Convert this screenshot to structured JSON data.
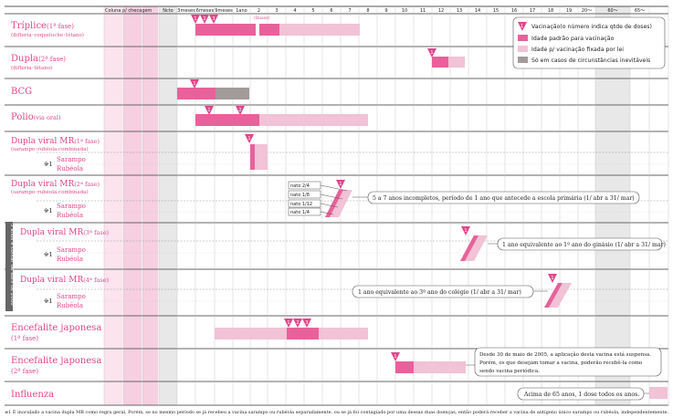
{
  "chart_data": {
    "type": "table",
    "title": "Calendário de vacinação",
    "columns": {
      "coluna": "Coluna p/ checagem",
      "ages": [
        "Ncto",
        "3meses",
        "6meses",
        "9meses",
        "1ano",
        "2",
        "3",
        "4",
        "5",
        "6",
        "7",
        "8",
        "9",
        "10",
        "11",
        "12",
        "13",
        "14",
        "15",
        "16",
        "17",
        "18",
        "19",
        "20～",
        "60～",
        "65～"
      ]
    },
    "legend": {
      "dose": "Vacinação(o número indica qtde de doses)",
      "standard": "Idade padrão para vacinação",
      "legal": "Idade p/ vacinação fixada por lei",
      "special": "Só em casos de circunstâncias inevitáveis"
    },
    "rows": [
      {
        "name": "Tríplice",
        "phase": "(1ª fase)",
        "sub": "(difteria･coqueluche･tétano)",
        "doses": [
          "1",
          "2",
          "3",
          "4"
        ],
        "extra": "(Doses)"
      },
      {
        "name": "Dupla",
        "phase": "(2ª fase)",
        "sub": "(difteria･tétano)",
        "doses": [
          "1"
        ]
      },
      {
        "name": "BCG",
        "doses": [
          "1"
        ]
      },
      {
        "name": "Polio",
        "sub": "(via oral)",
        "doses": [
          "1",
          "2"
        ]
      },
      {
        "name": "Dupla viral MR",
        "phase": "(1ª fase)",
        "sub": "(sarampo･rubéola combinada)",
        "doses": [
          "1"
        ]
      },
      {
        "name": "Dupla viral MR",
        "phase": "(2ª fase)",
        "sub": "(sarampo･rubéola combinada)",
        "doses": [
          "1"
        ]
      },
      {
        "name": "Dupla viral MR",
        "phase": "(3ª fase)",
        "doses": [
          "1"
        ]
      },
      {
        "name": "Dupla viral MR",
        "phase": "(4ª fase)",
        "doses": [
          "1"
        ]
      },
      {
        "name": "Encefalite japonesa",
        "phase": "(1ª fase)",
        "doses": [
          "1",
          "2",
          "3"
        ]
      },
      {
        "name": "Encefalite japonesa",
        "phase": "(2ª fase)",
        "doses": [
          "1"
        ]
      },
      {
        "name": "Influenza"
      }
    ],
    "sub_rows": {
      "mark": "※1",
      "sarampo": "Sarampo",
      "rubeola": "Rubéola"
    },
    "fractions": [
      "nato 2/4",
      "nato 1/8",
      "nato 1/12",
      "nato 1/4"
    ],
    "notes": {
      "mr2": "5 a 7 anos incompletos, período de 1 ano que antecede a escola primária (1/ abr a 31/ mar)",
      "mr3": "1 ano equivalente ao 1º ano do ginásio (1/ abr a 31/ mar)",
      "mr4": "1 ano equivalente ao 3º ano do colégio (1/ abr a 31/ mar)",
      "je2": [
        "Desde 30 de maio de 2005, a aplicação desta vacina está suspensa.",
        "Porém, os que desejam tomar a vacina, poderão recebê-la como",
        "sendo vacina periódica."
      ],
      "flu": "Acima de 65 anos, 1 dose todos os anos."
    },
    "side_label": "5 anos a contar de abril de 2008",
    "footnote": "※1  É inoculado a vacina dupla MR como regra geral. Porém, se no mesmo período se já recebeu a vacina sarampo ou rubéola separadamente, ou se já foi contagiado por uma dessas duas doenças, então poderá receber a vacina de antígeno único sarampo ou rubéola, independentemente."
  },
  "colors": {
    "standard": "#e8619b",
    "legal": "#f2c2d6",
    "special": "#a39a9a",
    "accent": "#e2458a",
    "check": "#f5cfe0",
    "gray": "#e6e6e6"
  }
}
